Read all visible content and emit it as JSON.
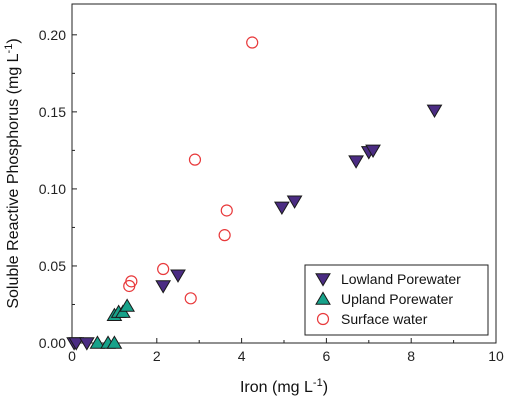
{
  "chart_data": {
    "type": "scatter",
    "xlabel": {
      "main": "Iron (mg L",
      "sup": "-1",
      "close": ")"
    },
    "ylabel": {
      "main": "Soluble Reactive Phosphorus (mg L",
      "sup": "-1",
      "close": ")"
    },
    "xlim": [
      0,
      10
    ],
    "ylim": [
      0,
      0.22
    ],
    "x_ticks": [
      0,
      2,
      4,
      6,
      8,
      10
    ],
    "x_tick_labels": [
      "0",
      "2",
      "4",
      "6",
      "8",
      "10"
    ],
    "y_ticks": [
      0,
      0.05,
      0.1,
      0.15,
      0.2
    ],
    "y_tick_labels": [
      "0.00",
      "0.05",
      "0.10",
      "0.15",
      "0.20"
    ],
    "grid": false,
    "legend_position": "bottom-right",
    "series": [
      {
        "name": "Lowland Porewater",
        "marker": "triangle-down",
        "color": "#4b2c83",
        "stroke": "#1a1a1a",
        "filled": true,
        "points": [
          [
            0.05,
            0.0
          ],
          [
            0.1,
            0.0
          ],
          [
            0.35,
            0.0
          ],
          [
            2.15,
            0.037
          ],
          [
            2.5,
            0.044
          ],
          [
            4.95,
            0.088
          ],
          [
            5.25,
            0.092
          ],
          [
            6.7,
            0.118
          ],
          [
            7.0,
            0.124
          ],
          [
            7.1,
            0.125
          ],
          [
            8.55,
            0.151
          ]
        ]
      },
      {
        "name": "Upland Porewater",
        "marker": "triangle-up",
        "color": "#17a28a",
        "stroke": "#1a1a1a",
        "filled": true,
        "points": [
          [
            0.6,
            0.0
          ],
          [
            0.85,
            0.0
          ],
          [
            1.0,
            0.0
          ],
          [
            1.0,
            0.018
          ],
          [
            1.1,
            0.02
          ],
          [
            1.2,
            0.02
          ],
          [
            1.3,
            0.024
          ]
        ]
      },
      {
        "name": "Surface water",
        "marker": "circle-open",
        "color": "#e8393b",
        "filled": false,
        "points": [
          [
            1.35,
            0.037
          ],
          [
            1.4,
            0.04
          ],
          [
            2.15,
            0.048
          ],
          [
            2.8,
            0.029
          ],
          [
            2.9,
            0.119
          ],
          [
            3.6,
            0.07
          ],
          [
            3.65,
            0.086
          ],
          [
            4.25,
            0.195
          ]
        ]
      }
    ]
  }
}
